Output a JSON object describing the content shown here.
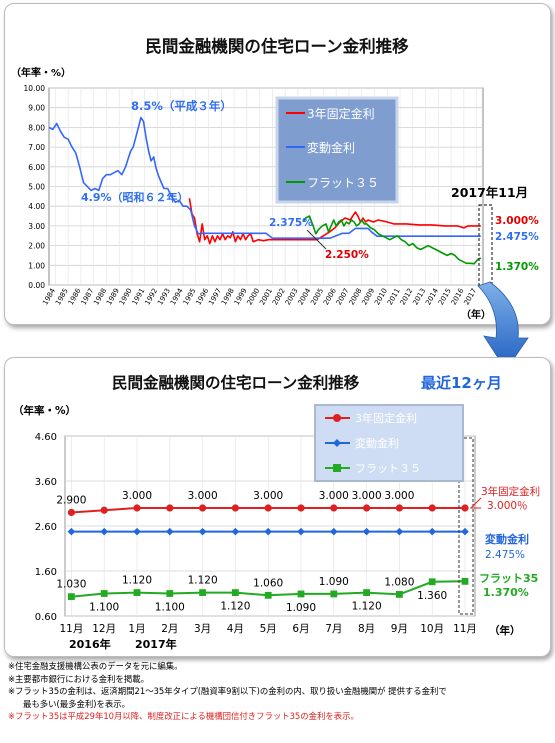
{
  "chart_data": [
    {
      "type": "line",
      "title": "民間金融機関の住宅ローン金利推移",
      "ylabel": "（年率・%）",
      "xlabel": "（年）",
      "ylim": [
        0,
        10
      ],
      "grid": true,
      "legend_position": "top-center",
      "yticks": [
        "0.00",
        "1.00",
        "2.00",
        "3.00",
        "4.00",
        "5.00",
        "6.00",
        "7.00",
        "8.00",
        "9.00",
        "10.00"
      ],
      "categories": [
        "1984",
        "1985",
        "1986",
        "1987",
        "1988",
        "1989",
        "1990",
        "1991",
        "1992",
        "1993",
        "1994",
        "1995",
        "1996",
        "1997",
        "1998",
        "1999",
        "2000",
        "2001",
        "2002",
        "2003",
        "2004",
        "2005",
        "2006",
        "2007",
        "2008",
        "2009",
        "2010",
        "2011",
        "2012",
        "2013",
        "2014",
        "2015",
        "2016",
        "2017"
      ],
      "series": [
        {
          "name": "3年固定金利",
          "color": "#ff0000",
          "x": [
            1995.0,
            1995.2,
            1995.4,
            1995.6,
            1995.8,
            1996.0,
            1996.2,
            1996.4,
            1996.6,
            1996.8,
            1997.0,
            1997.2,
            1997.4,
            1997.6,
            1997.8,
            1998.0,
            1998.2,
            1998.4,
            1998.6,
            1998.8,
            1999.0,
            1999.2,
            1999.4,
            1999.6,
            1999.8,
            2000.0,
            2000.4,
            2000.8,
            2001.2,
            2002.0,
            2003.0,
            2004.0,
            2004.5,
            2005.0,
            2005.5,
            2006.0,
            2006.4,
            2006.8,
            2007.2,
            2007.6,
            2008.0,
            2008.2,
            2008.4,
            2008.6,
            2008.8,
            2009.0,
            2009.4,
            2009.8,
            2010.5,
            2011.0,
            2012.0,
            2013.0,
            2014.0,
            2015.0,
            2016.0,
            2016.5,
            2016.8,
            2017.0,
            2017.4,
            2017.83
          ],
          "values": [
            4.4,
            3.6,
            3.4,
            2.6,
            2.2,
            3.1,
            2.3,
            2.5,
            2.1,
            2.5,
            2.2,
            2.5,
            2.3,
            2.6,
            2.3,
            2.5,
            2.4,
            2.7,
            2.2,
            2.5,
            2.3,
            2.6,
            2.3,
            2.5,
            2.6,
            2.2,
            2.3,
            2.25,
            2.3,
            2.3,
            2.3,
            2.3,
            2.3,
            2.3,
            2.5,
            2.7,
            2.9,
            3.2,
            3.4,
            3.3,
            3.7,
            3.5,
            3.2,
            3.4,
            3.2,
            3.3,
            3.2,
            3.3,
            3.2,
            3.1,
            3.1,
            3.05,
            3.05,
            3.0,
            3.0,
            2.9,
            3.0,
            3.0,
            3.0,
            3.0
          ]
        },
        {
          "name": "変動金利",
          "color": "#3366ff",
          "x": [
            1984.0,
            1984.3,
            1984.6,
            1984.9,
            1985.2,
            1985.5,
            1985.8,
            1986.1,
            1986.4,
            1986.7,
            1987.0,
            1987.3,
            1987.6,
            1987.9,
            1988.2,
            1988.5,
            1988.8,
            1989.1,
            1989.4,
            1989.7,
            1990.0,
            1990.2,
            1990.4,
            1990.6,
            1990.8,
            1991.0,
            1991.2,
            1991.4,
            1991.6,
            1991.8,
            1992.0,
            1992.2,
            1992.4,
            1992.6,
            1992.8,
            1993.0,
            1993.3,
            1993.6,
            1993.9,
            1994.2,
            1994.5,
            1994.8,
            1995.1,
            1995.4,
            1995.7,
            1996.0,
            1997.0,
            1998.0,
            2000.0,
            2001.0,
            2001.5,
            2002.0,
            2003.0,
            2004.0,
            2005.0,
            2006.0,
            2006.5,
            2007.0,
            2007.5,
            2008.0,
            2008.5,
            2009.0,
            2009.3,
            2009.7,
            2010.0,
            2011.0,
            2012.0,
            2013.0,
            2014.0,
            2015.0,
            2016.0,
            2017.83
          ],
          "values": [
            8.0,
            7.9,
            8.2,
            7.8,
            7.5,
            7.4,
            7.0,
            6.7,
            6.0,
            5.2,
            5.0,
            4.8,
            4.9,
            4.8,
            5.4,
            5.6,
            5.6,
            5.7,
            5.8,
            5.6,
            6.0,
            6.4,
            6.8,
            7.0,
            7.5,
            8.0,
            8.5,
            8.3,
            7.5,
            6.8,
            6.3,
            6.5,
            5.9,
            5.5,
            5.2,
            4.9,
            4.9,
            4.5,
            4.2,
            4.3,
            4.0,
            4.0,
            3.8,
            3.0,
            2.6,
            2.625,
            2.625,
            2.625,
            2.625,
            2.625,
            2.375,
            2.375,
            2.375,
            2.375,
            2.375,
            2.375,
            2.5,
            2.625,
            2.625,
            2.875,
            2.875,
            2.875,
            2.675,
            2.475,
            2.475,
            2.475,
            2.475,
            2.475,
            2.475,
            2.475,
            2.475,
            2.475
          ]
        },
        {
          "name": "フラット３５",
          "color": "#009900",
          "x": [
            2003.9,
            2004.1,
            2004.4,
            2004.7,
            2004.9,
            2005.1,
            2005.4,
            2005.7,
            2005.9,
            2006.1,
            2006.3,
            2006.5,
            2006.7,
            2006.9,
            2007.1,
            2007.3,
            2007.5,
            2007.7,
            2007.9,
            2008.1,
            2008.3,
            2008.5,
            2008.7,
            2008.9,
            2009.2,
            2009.5,
            2009.8,
            2010.1,
            2010.4,
            2010.7,
            2011.0,
            2011.3,
            2011.6,
            2011.9,
            2012.2,
            2012.5,
            2012.8,
            2013.1,
            2013.4,
            2013.7,
            2014.0,
            2014.3,
            2014.6,
            2014.9,
            2015.2,
            2015.5,
            2015.8,
            2016.1,
            2016.4,
            2016.7,
            2017.0,
            2017.3,
            2017.6,
            2017.83
          ],
          "values": [
            3.2,
            3.4,
            3.5,
            3.0,
            2.6,
            2.8,
            3.0,
            3.1,
            2.7,
            3.0,
            3.3,
            3.0,
            3.2,
            3.3,
            3.0,
            3.2,
            3.1,
            3.3,
            3.2,
            3.0,
            3.1,
            3.3,
            3.1,
            3.1,
            2.9,
            2.8,
            2.6,
            2.5,
            2.4,
            2.3,
            2.4,
            2.5,
            2.3,
            2.2,
            2.0,
            2.1,
            1.9,
            1.8,
            1.9,
            2.0,
            1.9,
            1.8,
            1.7,
            1.6,
            1.5,
            1.6,
            1.5,
            1.3,
            1.2,
            1.1,
            1.1,
            1.08,
            1.3,
            1.37
          ]
        }
      ],
      "annotations": [
        {
          "text": "8.5%（平成３年）"
        },
        {
          "text": "4.9%（昭和６２年）"
        },
        {
          "text": "2.375%"
        },
        {
          "text": "2.250%"
        },
        {
          "text": "2017年11月"
        },
        {
          "text": "3.000%"
        },
        {
          "text": "2.475%"
        },
        {
          "text": "1.370%"
        }
      ]
    },
    {
      "type": "line",
      "title": "民間金融機関の住宅ローン金利推移",
      "subtitle": "最近12ヶ月",
      "ylabel": "（年率・%）",
      "xlabel": "（年）",
      "ylim": [
        0.6,
        4.6
      ],
      "grid": true,
      "legend_position": "top-right",
      "yticks": [
        "0.60",
        "1.60",
        "2.60",
        "3.60",
        "4.60"
      ],
      "categories": [
        "11月",
        "12月",
        "1月",
        "2月",
        "3月",
        "4月",
        "5月",
        "6月",
        "7月",
        "8月",
        "9月",
        "10月",
        "11月"
      ],
      "year_labels": [
        "2016年",
        "2017年"
      ],
      "series": [
        {
          "name": "3年固定金利",
          "color": "#e02020",
          "values": [
            2.9,
            2.95,
            3.0,
            3.0,
            3.0,
            3.0,
            3.0,
            3.0,
            3.0,
            3.0,
            3.0,
            3.0,
            3.0
          ],
          "labels": [
            "2.900",
            "",
            "3.000",
            "",
            "3.000",
            "",
            "3.000",
            "",
            "3.000",
            "3.000",
            "3.000",
            "",
            ""
          ]
        },
        {
          "name": "変動金利",
          "color": "#2266dd",
          "values": [
            2.475,
            2.475,
            2.475,
            2.475,
            2.475,
            2.475,
            2.475,
            2.475,
            2.475,
            2.475,
            2.475,
            2.475,
            2.475
          ]
        },
        {
          "name": "フラット３５",
          "color": "#22aa22",
          "values": [
            1.03,
            1.1,
            1.12,
            1.1,
            1.12,
            1.12,
            1.06,
            1.09,
            1.09,
            1.12,
            1.08,
            1.36,
            1.37
          ],
          "labels_above": [
            "1.030",
            "",
            "1.120",
            "",
            "1.120",
            "",
            "1.060",
            "",
            "1.090",
            "",
            "1.080",
            "",
            ""
          ],
          "labels_below": [
            "",
            "1.100",
            "",
            "1.100",
            "",
            "1.120",
            "",
            "1.090",
            "",
            "1.120",
            "",
            "1.360",
            ""
          ]
        }
      ],
      "end_labels": [
        {
          "name": "3年固定金利",
          "value": "3.000％"
        },
        {
          "name": "変動金利",
          "value": "2.475%"
        },
        {
          "name": "フラット35",
          "value": "1.370%"
        }
      ]
    }
  ],
  "notes": [
    "※住宅金融支援機構公表のデータを元に編集。",
    "※主要都市銀行における金利を掲載。",
    "※フラット35の金利は、返済期間21～35年タイプ(融資率9割以下)の金利の内、取り扱い金融機関が 提供する金利で",
    "最も多い(最多金利)を表示。",
    "※フラット35は平成29年10月以降、制度改正による機構団信付きフラット35の金利を表示。"
  ]
}
